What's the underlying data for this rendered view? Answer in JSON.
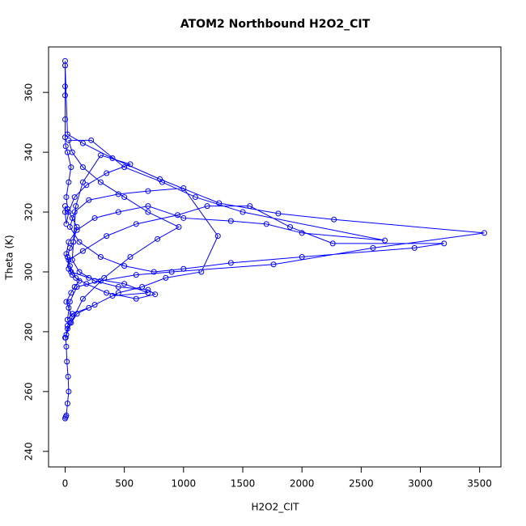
{
  "chart_data": {
    "type": "line",
    "title": "ATOM2 Northbound H2O2_CIT",
    "x_label": "H2O2_CIT",
    "y_label": "Theta (K)",
    "color": "#0000ff",
    "markers": true,
    "x": [
      0,
      5,
      10,
      20,
      30,
      25,
      15,
      10,
      5,
      20,
      40,
      60,
      30,
      10,
      50,
      80,
      120,
      60,
      30,
      20,
      40,
      70,
      100,
      60,
      20,
      10,
      30,
      50,
      20,
      5,
      0,
      0,
      0,
      0,
      0,
      0,
      0,
      20,
      150,
      400,
      800,
      1300,
      1800,
      2270,
      3540,
      2600,
      1760,
      900,
      600,
      300,
      100,
      40,
      20,
      60,
      200,
      400,
      700,
      500,
      200,
      50,
      30,
      150,
      350,
      600,
      950,
      1200,
      1560,
      1900,
      2260,
      3200,
      2950,
      2000,
      1400,
      1000,
      750,
      500,
      300,
      120,
      40,
      80,
      200,
      450,
      700,
      1000,
      1290,
      1150,
      850,
      650,
      450,
      250,
      100,
      20,
      10,
      0,
      50,
      150,
      330,
      550,
      780,
      960,
      700,
      500,
      300,
      150,
      60,
      30,
      220,
      500,
      820,
      1100,
      1500,
      2700,
      2000,
      1700,
      1400,
      1000,
      700,
      450,
      250,
      100,
      30,
      10,
      40,
      90,
      180,
      350,
      600,
      760,
      700,
      450,
      250,
      120,
      60,
      90,
      150,
      300,
      550,
      350,
      180,
      80,
      30,
      10,
      0,
      0
    ],
    "values": [
      251,
      251.5,
      252,
      256,
      260,
      265,
      270,
      275,
      278,
      282,
      283,
      285,
      288,
      290,
      293,
      295,
      297,
      299,
      301,
      305,
      308,
      310,
      315,
      318,
      321,
      325,
      330,
      335,
      340,
      342,
      345,
      351,
      359,
      362,
      369,
      370.5,
      369,
      346,
      343,
      338,
      331,
      323,
      319.5,
      317.5,
      313,
      308,
      302.5,
      300,
      299,
      297,
      295,
      290,
      284,
      286,
      288,
      292,
      293,
      296,
      298,
      300,
      304,
      307,
      312,
      316,
      319,
      322,
      322,
      315,
      309.5,
      309.5,
      308,
      305,
      303,
      301,
      300,
      302,
      305,
      310,
      315,
      320,
      324,
      326,
      327,
      328,
      312,
      300,
      298,
      295,
      293,
      289,
      286,
      281,
      279,
      278,
      283,
      291,
      298,
      305,
      311,
      315,
      320,
      325,
      330,
      335,
      340,
      344,
      344,
      335,
      330,
      325,
      320,
      310.5,
      313,
      316,
      317,
      318,
      322,
      320,
      318,
      314,
      310,
      306,
      302,
      298,
      296,
      293,
      291,
      292.5,
      294,
      295,
      297,
      300,
      304,
      322,
      330,
      339,
      336,
      333,
      329,
      325,
      320,
      316,
      320,
      322
    ],
    "xlim": [
      -140,
      3680
    ],
    "ylim": [
      234.8,
      375.2
    ],
    "xticks": [
      0,
      500,
      1000,
      1500,
      2000,
      2500,
      3000,
      3500
    ],
    "yticks": [
      240,
      260,
      280,
      300,
      320,
      340,
      360
    ]
  }
}
